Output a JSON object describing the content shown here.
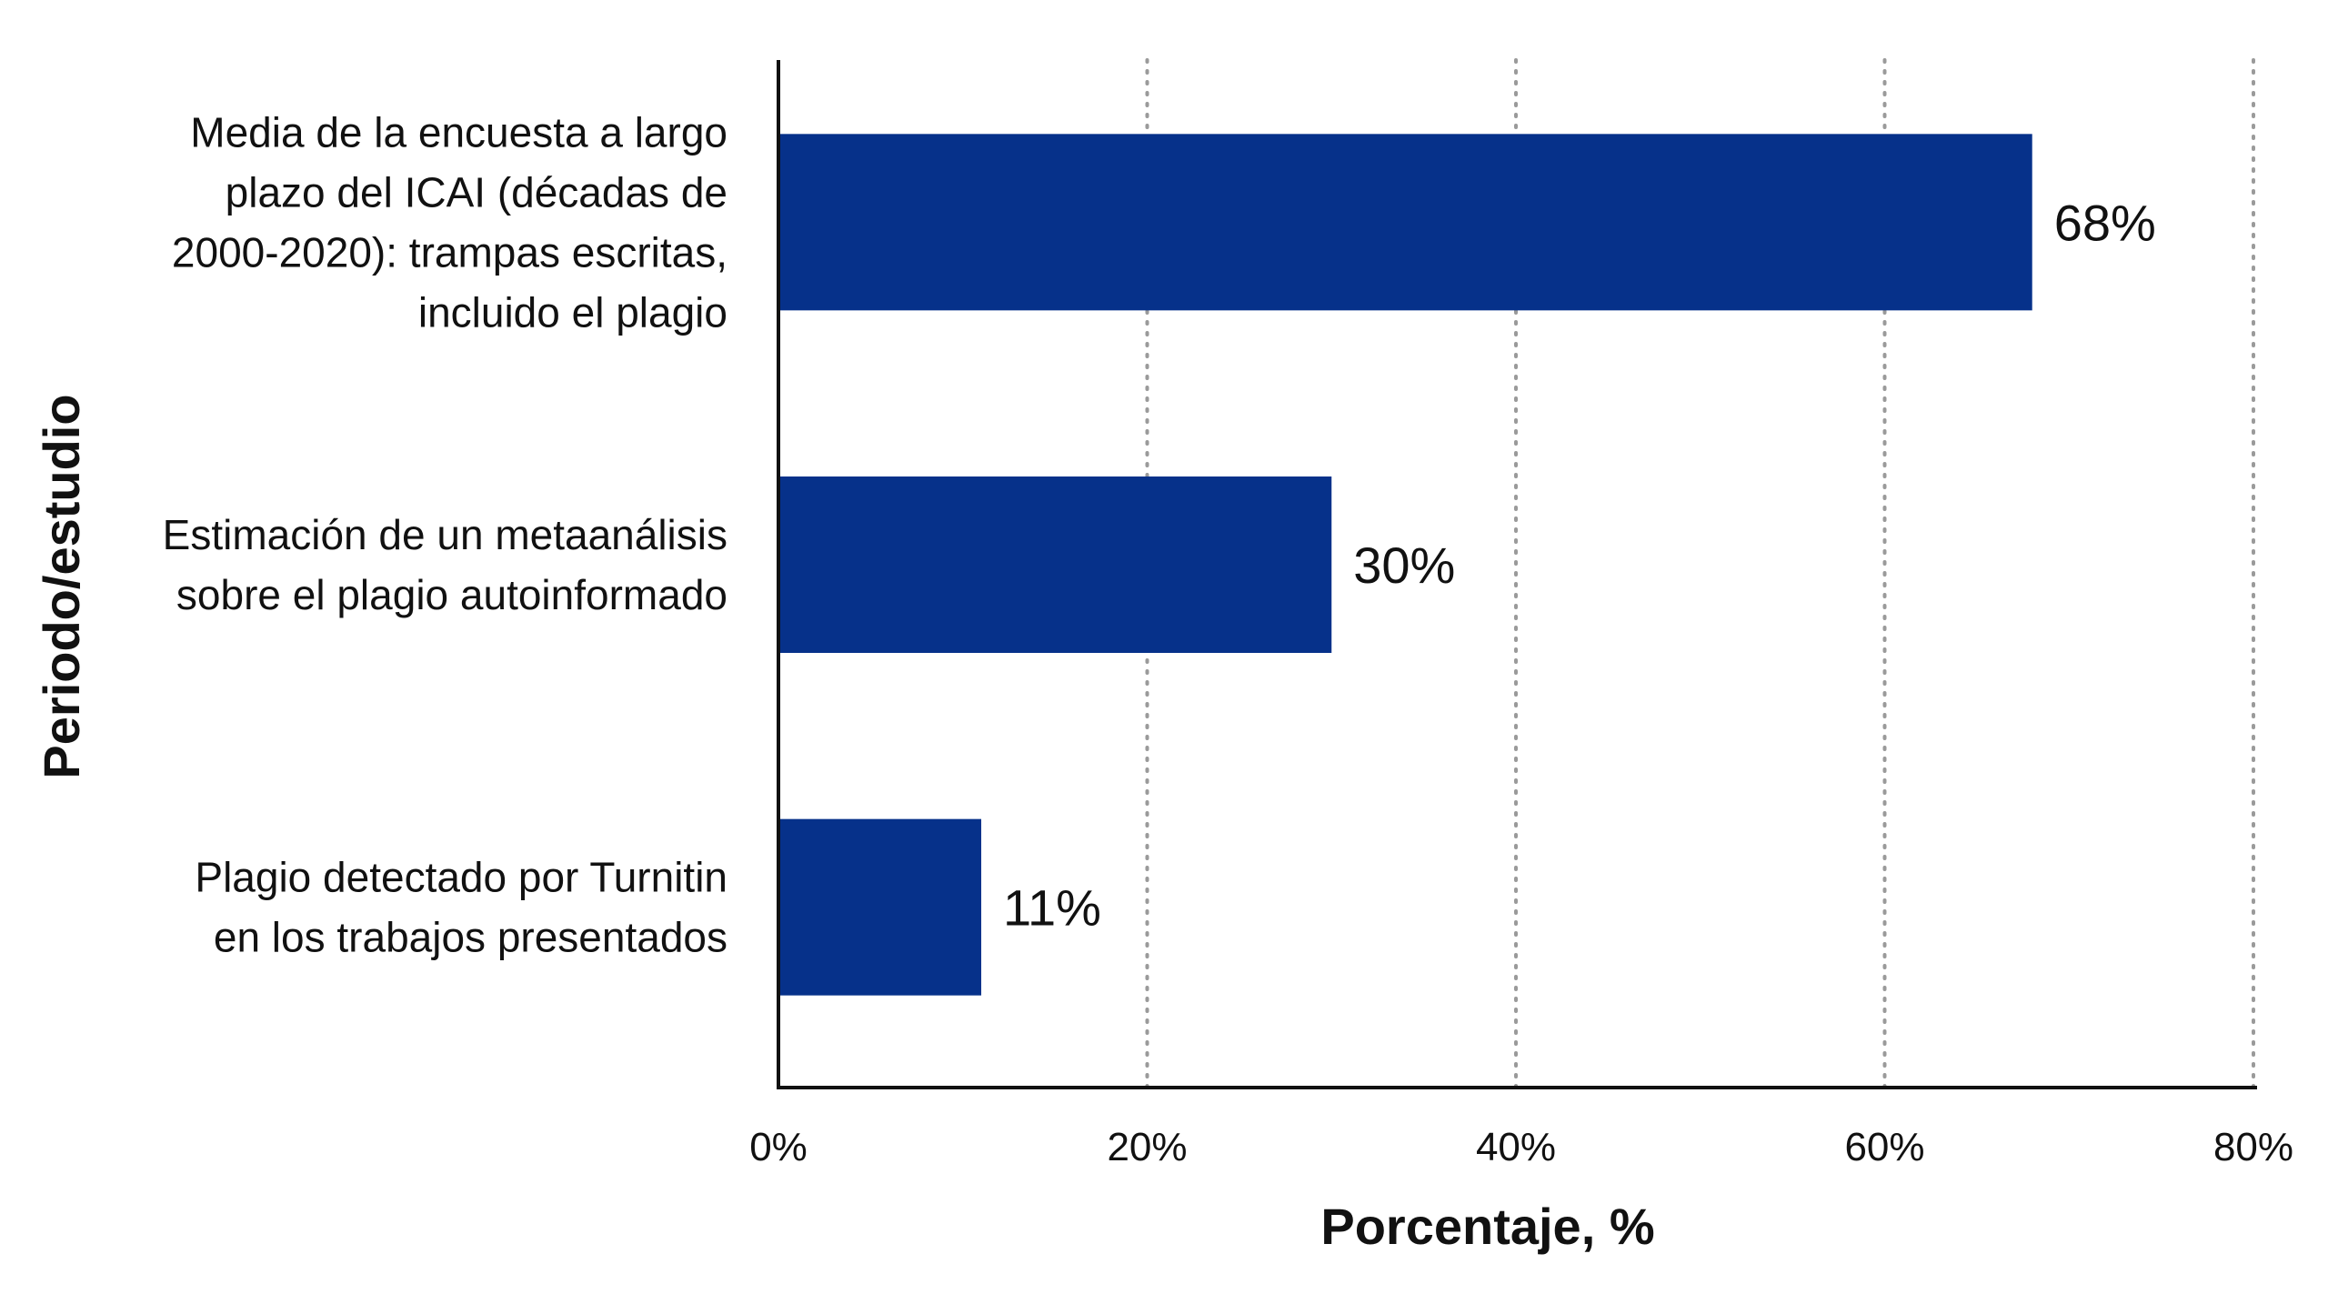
{
  "chart_data": {
    "type": "bar",
    "orientation": "horizontal",
    "categories": [
      [
        "Media de la encuesta a largo",
        "plazo del ICAI (décadas de",
        "2000-2020): trampas escritas,",
        "incluido el plagio"
      ],
      [
        "Estimación de un metaanálisis",
        "sobre el plagio autoinformado"
      ],
      [
        "Plagio detectado por Turnitin",
        "en los trabajos presentados"
      ]
    ],
    "values": [
      68,
      30,
      11
    ],
    "data_labels": [
      "68%",
      "30%",
      "11%"
    ],
    "xlabel": "Porcentaje, %",
    "ylabel": "Periodo/estudio",
    "xlim": [
      0,
      80
    ],
    "xticks": [
      0,
      20,
      40,
      60,
      80
    ],
    "xtick_labels": [
      "0%",
      "20%",
      "40%",
      "60%",
      "80%"
    ],
    "grid": "vertical dotted",
    "legend": "none",
    "bar_color": "#06318a",
    "grid_color": "#9a9a9a",
    "axis_color": "#111111"
  }
}
